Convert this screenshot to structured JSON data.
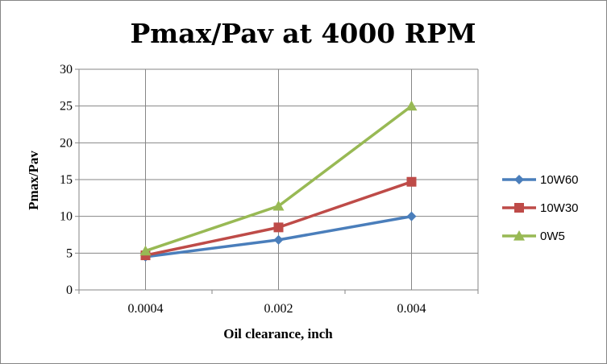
{
  "chart_data": {
    "type": "line",
    "title": "Pmax/Pav at 4000 RPM",
    "xlabel": "Oil clearance, inch",
    "ylabel": "Pmax/Pav",
    "categories": [
      "0.0004",
      "0.002",
      "0.004"
    ],
    "ylim": [
      0,
      30
    ],
    "yticks": [
      0,
      5,
      10,
      15,
      20,
      25,
      30
    ],
    "grid": true,
    "legend_position": "right",
    "series": [
      {
        "name": "10W60",
        "values": [
          4.5,
          6.8,
          10.0
        ],
        "color": "#4a7ebb",
        "marker": "diamond"
      },
      {
        "name": "10W30",
        "values": [
          4.7,
          8.5,
          14.7
        ],
        "color": "#be4b48",
        "marker": "square"
      },
      {
        "name": "0W5",
        "values": [
          5.3,
          11.4,
          25.0
        ],
        "color": "#98b954",
        "marker": "triangle"
      }
    ]
  }
}
